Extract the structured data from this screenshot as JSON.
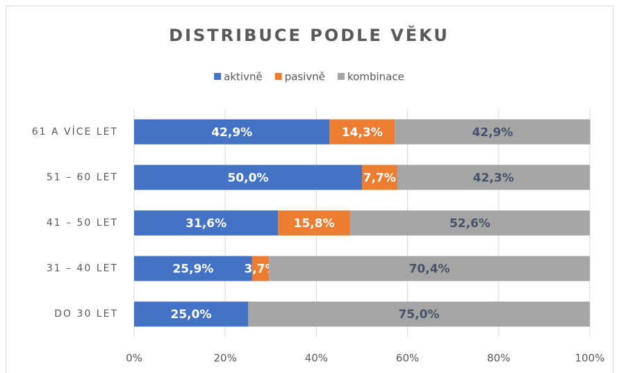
{
  "chart_data": {
    "type": "stacked-barh",
    "title": "DISTRIBUCE PODLE VĚKU",
    "categories": [
      "61 A VÍCE LET",
      "51 – 60 LET",
      "41 – 50 LET",
      "31 – 40 LET",
      "DO 30 LET"
    ],
    "series": [
      {
        "name": "aktivně",
        "color": "#4472c4",
        "values": [
          42.9,
          50.0,
          31.6,
          25.9,
          25.0
        ],
        "value_labels": [
          "42,9%",
          "50,0%",
          "31,6%",
          "25,9%",
          "25,0%"
        ]
      },
      {
        "name": "pasivně",
        "color": "#ed7d31",
        "values": [
          14.3,
          7.7,
          15.8,
          3.7,
          0
        ],
        "value_labels": [
          "14,3%",
          "7,7%",
          "15,8%",
          "3,7%",
          null
        ]
      },
      {
        "name": "kombinace",
        "color": "#a5a5a5",
        "values": [
          42.9,
          42.3,
          52.6,
          70.4,
          75.0
        ],
        "value_labels": [
          "42,9%",
          "42,3%",
          "52,6%",
          "70,4%",
          "75,0%"
        ]
      }
    ],
    "xlim": [
      0,
      100
    ],
    "xticks": [
      {
        "value": 0,
        "label": "0%"
      },
      {
        "value": 20,
        "label": "20%"
      },
      {
        "value": 40,
        "label": "40%"
      },
      {
        "value": 60,
        "label": "60%"
      },
      {
        "value": 80,
        "label": "80%"
      },
      {
        "value": 100,
        "label": "100%"
      }
    ],
    "grid": true,
    "legend": "top"
  }
}
